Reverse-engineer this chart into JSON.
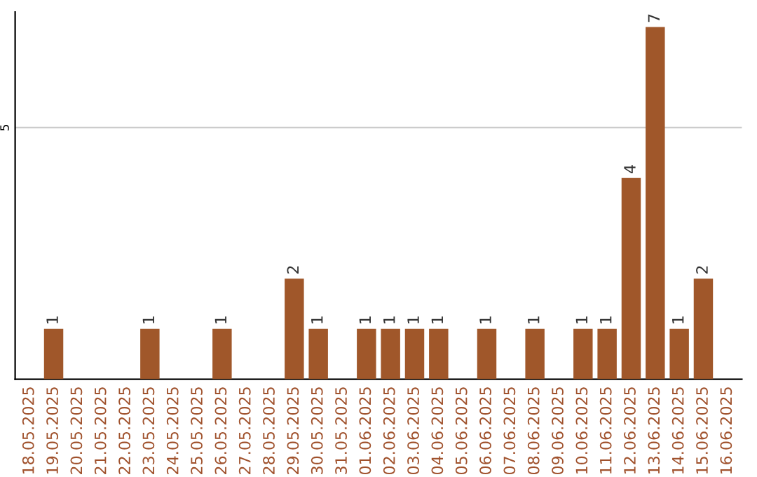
{
  "chart_data": {
    "type": "bar",
    "categories": [
      "18.05.2025",
      "19.05.2025",
      "20.05.2025",
      "21.05.2025",
      "22.05.2025",
      "23.05.2025",
      "24.05.2025",
      "25.05.2025",
      "26.05.2025",
      "27.05.2025",
      "28.05.2025",
      "29.05.2025",
      "30.05.2025",
      "31.05.2025",
      "01.06.2025",
      "02.06.2025",
      "03.06.2025",
      "04.06.2025",
      "05.06.2025",
      "06.06.2025",
      "07.06.2025",
      "08.06.2025",
      "09.06.2025",
      "10.06.2025",
      "11.06.2025",
      "12.06.2025",
      "13.06.2025",
      "14.06.2025",
      "15.06.2025",
      "16.06.2025"
    ],
    "values": [
      0,
      1,
      0,
      0,
      0,
      1,
      0,
      0,
      1,
      0,
      0,
      2,
      1,
      0,
      1,
      1,
      1,
      1,
      0,
      1,
      0,
      1,
      0,
      1,
      1,
      4,
      7,
      1,
      2,
      0
    ],
    "value_labels": [
      null,
      "1",
      null,
      null,
      null,
      "1",
      null,
      null,
      "1",
      null,
      null,
      "2",
      "1",
      null,
      "1",
      "1",
      "1",
      "1",
      null,
      "1",
      null,
      "1",
      null,
      "1",
      "1",
      "4",
      "7",
      "1",
      "2",
      null
    ],
    "color": "#a0572a",
    "ylim": [
      0,
      7.3
    ],
    "yticks": [
      5
    ],
    "grid": "y"
  }
}
